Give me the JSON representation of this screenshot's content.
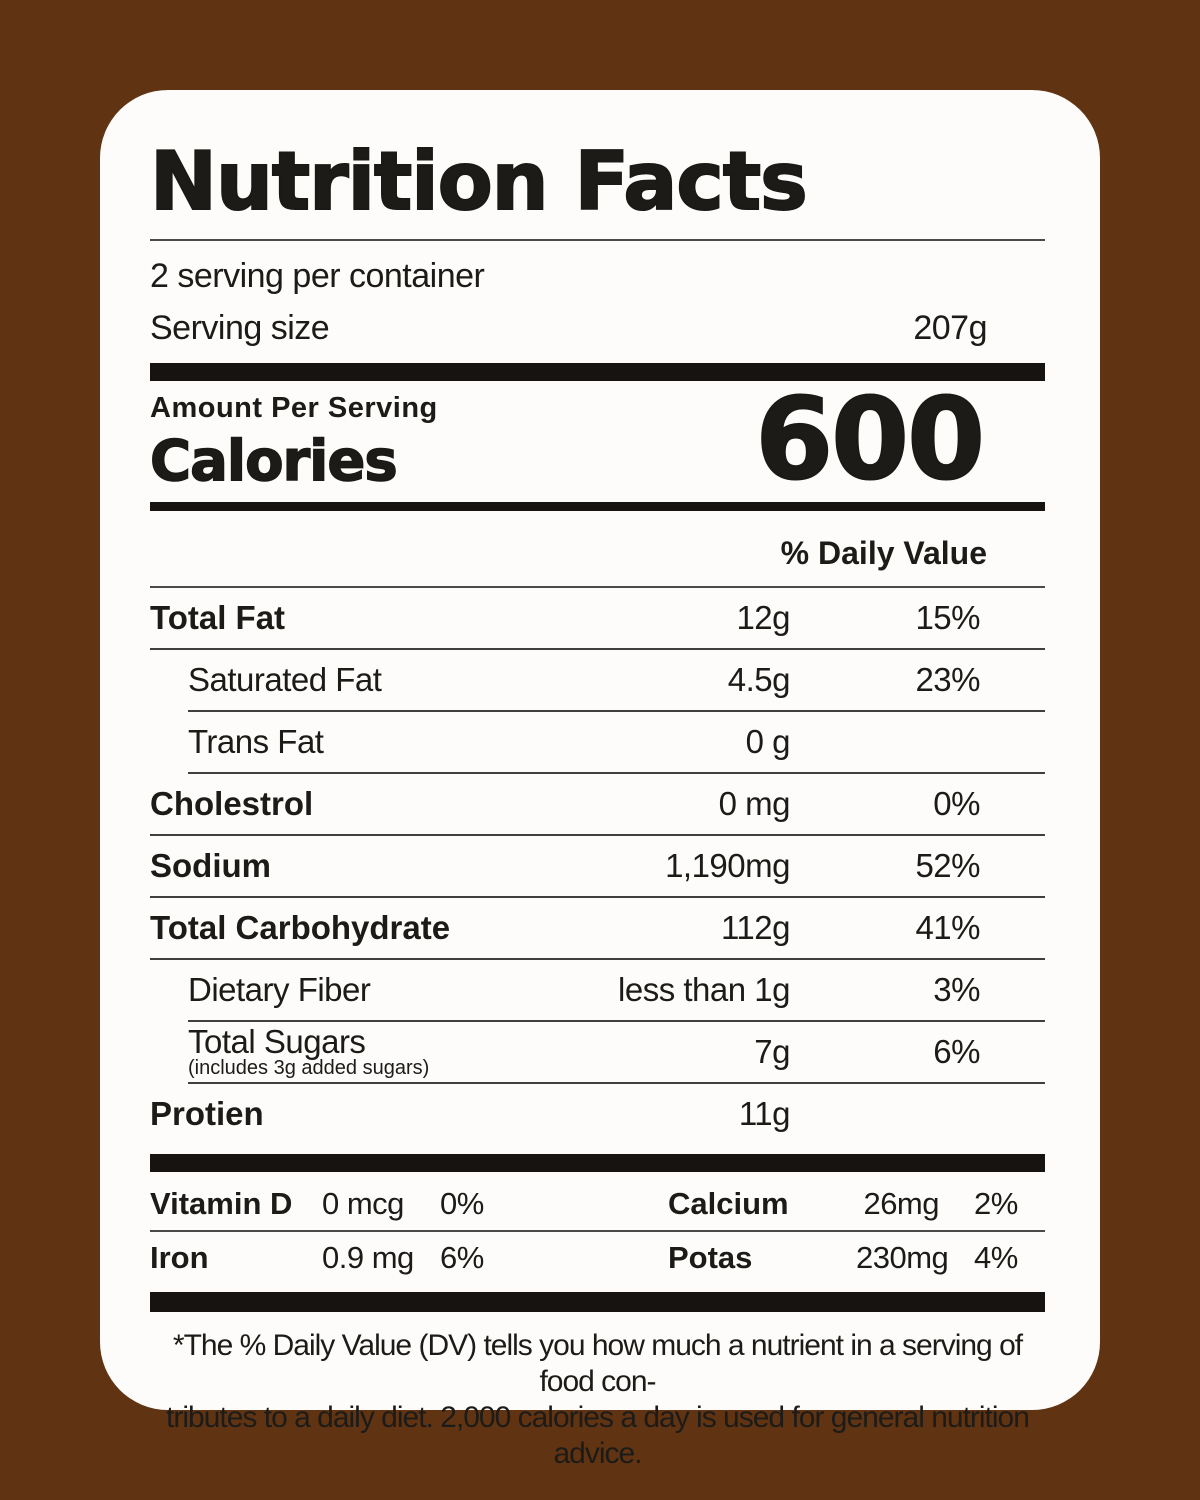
{
  "colors": {
    "background": "#603413",
    "label_background": "#FDFCFA",
    "bar_black": "#161310",
    "text": "#1D1B18"
  },
  "label": {
    "title": "Nutrition Facts",
    "servings_per_container": "2 serving per container",
    "serving_size_label": "Serving size",
    "serving_size_value": "207g",
    "amount_per_serving": "Amount Per Serving",
    "calories_label": "Calories",
    "calories_value": "600",
    "daily_value_header": "% Daily Value",
    "nutrients": [
      {
        "name": "Total Fat",
        "amount": "12g",
        "dv": "15%"
      },
      {
        "name": "Saturated Fat",
        "amount": "4.5g",
        "dv": "23%"
      },
      {
        "name": "Trans Fat",
        "amount": "0 g",
        "dv": ""
      },
      {
        "name": "Cholestrol",
        "amount": "0 mg",
        "dv": "0%"
      },
      {
        "name": "Sodium",
        "amount": "1,190mg",
        "dv": "52%"
      },
      {
        "name": "Total Carbohydrate",
        "amount": "112g",
        "dv": "41%"
      },
      {
        "name": "Dietary Fiber",
        "amount": "less than 1g",
        "dv": "3%"
      },
      {
        "name": "Total Sugars",
        "note": "(includes 3g added sugars)",
        "amount": "7g",
        "dv": "6%"
      },
      {
        "name": "Protien",
        "amount": "11g",
        "dv": ""
      }
    ],
    "micronutrients": [
      {
        "name": "Vitamin D",
        "amount": "0 mcg",
        "dv": "0%"
      },
      {
        "name": "Calcium",
        "amount": "26mg",
        "dv": "2%"
      },
      {
        "name": "Iron",
        "amount": "0.9 mg",
        "dv": "6%"
      },
      {
        "name": "Potas",
        "amount": "230mg",
        "dv": "4%"
      }
    ],
    "footnote_line1": "*The % Daily Value (DV) tells you how much a nutrient in a serving of food con-",
    "footnote_line2": "tributes to a daily diet. 2,000 calories a day is used for general nutrition advice."
  }
}
